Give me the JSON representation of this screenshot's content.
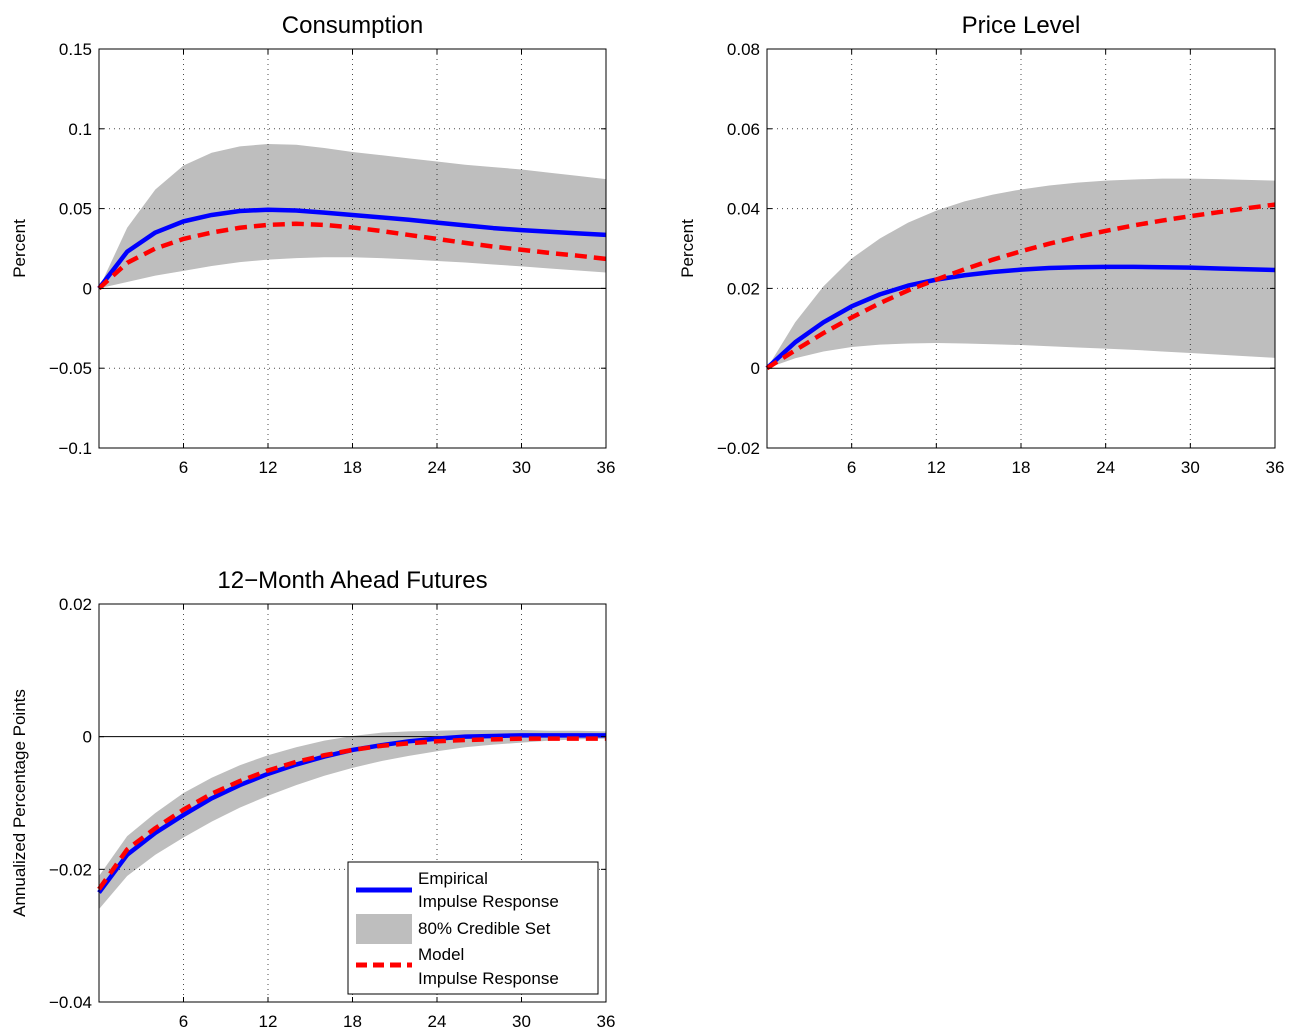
{
  "colors": {
    "empirical": "#0000ff",
    "band": "#bebebe",
    "model": "#ff0000",
    "axis": "#000000"
  },
  "legend": {
    "entries": [
      {
        "key": "empirical",
        "lines": [
          "Empirical",
          "Impulse Response"
        ]
      },
      {
        "key": "band",
        "lines": [
          "80% Credible Set"
        ]
      },
      {
        "key": "model",
        "lines": [
          "Model",
          "Impulse Response"
        ]
      }
    ],
    "placement": "lower-right of 12-Month Ahead Futures panel"
  },
  "chart_data": [
    {
      "type": "line",
      "title": "Consumption",
      "xlabel": "",
      "ylabel": "Percent",
      "xlim": [
        0,
        36
      ],
      "ylim": [
        -0.1,
        0.15
      ],
      "xticks": [
        6,
        12,
        18,
        24,
        30,
        36
      ],
      "xtick_labels": [
        "6",
        "12",
        "18",
        "24",
        "30",
        "36"
      ],
      "yticks": [
        -0.1,
        -0.05,
        0,
        0.05,
        0.1,
        0.15
      ],
      "ytick_labels": [
        "−0.1",
        "−0.05",
        "0",
        "0.05",
        "0.1",
        "0.15"
      ],
      "grid": true,
      "x": [
        0,
        2,
        4,
        6,
        8,
        10,
        12,
        14,
        16,
        18,
        20,
        22,
        24,
        26,
        28,
        30,
        32,
        34,
        36
      ],
      "series": [
        {
          "name": "Empirical Impulse Response",
          "key": "empirical",
          "values": [
            0,
            0.023,
            0.035,
            0.042,
            0.046,
            0.0485,
            0.0493,
            0.0488,
            0.0475,
            0.046,
            0.0445,
            0.043,
            0.0412,
            0.0395,
            0.0378,
            0.0365,
            0.0355,
            0.0345,
            0.0335
          ]
        },
        {
          "name": "Model Impulse Response",
          "key": "model",
          "values": [
            0,
            0.016,
            0.025,
            0.031,
            0.035,
            0.038,
            0.0398,
            0.0405,
            0.0398,
            0.0382,
            0.036,
            0.0335,
            0.031,
            0.0285,
            0.0262,
            0.0242,
            0.0222,
            0.0205,
            0.0185
          ]
        },
        {
          "name": "80% Credible Set",
          "key": "band",
          "lower": [
            0,
            0.004,
            0.008,
            0.011,
            0.014,
            0.0165,
            0.018,
            0.019,
            0.0195,
            0.0195,
            0.019,
            0.0182,
            0.0172,
            0.0162,
            0.015,
            0.0138,
            0.0125,
            0.0112,
            0.01
          ],
          "upper": [
            0,
            0.038,
            0.062,
            0.077,
            0.085,
            0.089,
            0.0905,
            0.09,
            0.088,
            0.0855,
            0.0835,
            0.0815,
            0.0795,
            0.0775,
            0.076,
            0.0745,
            0.0725,
            0.0705,
            0.0685
          ]
        }
      ]
    },
    {
      "type": "line",
      "title": "Price Level",
      "xlabel": "",
      "ylabel": "Percent",
      "xlim": [
        0,
        36
      ],
      "ylim": [
        -0.02,
        0.08
      ],
      "xticks": [
        6,
        12,
        18,
        24,
        30,
        36
      ],
      "xtick_labels": [
        "6",
        "12",
        "18",
        "24",
        "30",
        "36"
      ],
      "yticks": [
        -0.02,
        0,
        0.02,
        0.04,
        0.06,
        0.08
      ],
      "ytick_labels": [
        "−0.02",
        "0",
        "0.02",
        "0.04",
        "0.06",
        "0.08"
      ],
      "grid": true,
      "x": [
        0,
        2,
        4,
        6,
        8,
        10,
        12,
        14,
        16,
        18,
        20,
        22,
        24,
        26,
        28,
        30,
        32,
        34,
        36
      ],
      "series": [
        {
          "name": "Empirical Impulse Response",
          "key": "empirical",
          "values": [
            0,
            0.0065,
            0.0115,
            0.0155,
            0.0185,
            0.0207,
            0.0222,
            0.0233,
            0.0241,
            0.0247,
            0.0251,
            0.0253,
            0.0254,
            0.0254,
            0.0253,
            0.0252,
            0.025,
            0.0248,
            0.0246
          ]
        },
        {
          "name": "Model Impulse Response",
          "key": "model",
          "values": [
            0,
            0.0045,
            0.0088,
            0.0127,
            0.0163,
            0.0195,
            0.0222,
            0.0248,
            0.0272,
            0.0293,
            0.0312,
            0.0329,
            0.0344,
            0.0358,
            0.037,
            0.0381,
            0.0391,
            0.0401,
            0.041
          ]
        },
        {
          "name": "80% Credible Set",
          "key": "band",
          "lower": [
            0,
            0.0025,
            0.0042,
            0.0053,
            0.0059,
            0.0062,
            0.0063,
            0.0062,
            0.006,
            0.0058,
            0.0055,
            0.0052,
            0.0049,
            0.0046,
            0.0042,
            0.0038,
            0.0034,
            0.003,
            0.0026
          ],
          "upper": [
            0,
            0.0115,
            0.0205,
            0.0275,
            0.0325,
            0.0365,
            0.0395,
            0.0418,
            0.0435,
            0.0448,
            0.0458,
            0.0465,
            0.047,
            0.0473,
            0.0475,
            0.0475,
            0.0474,
            0.0472,
            0.047
          ]
        }
      ]
    },
    {
      "type": "line",
      "title": "12−Month Ahead Futures",
      "xlabel": "",
      "ylabel": "Annualized Percentage Points",
      "xlim": [
        0,
        36
      ],
      "ylim": [
        -0.04,
        0.02
      ],
      "xticks": [
        6,
        12,
        18,
        24,
        30,
        36
      ],
      "xtick_labels": [
        "6",
        "12",
        "18",
        "24",
        "30",
        "36"
      ],
      "yticks": [
        -0.04,
        -0.02,
        0,
        0.02
      ],
      "ytick_labels": [
        "−0.04",
        "−0.02",
        "0",
        "0.02"
      ],
      "grid": true,
      "x": [
        0,
        2,
        4,
        6,
        8,
        10,
        12,
        14,
        16,
        18,
        20,
        22,
        24,
        26,
        28,
        30,
        32,
        34,
        36
      ],
      "series": [
        {
          "name": "Empirical Impulse Response",
          "key": "empirical",
          "values": [
            -0.0235,
            -0.0178,
            -0.0145,
            -0.0118,
            -0.0093,
            -0.0073,
            -0.0056,
            -0.0042,
            -0.003,
            -0.002,
            -0.0013,
            -0.0007,
            -0.0003,
            0,
            0.0001,
            0.0002,
            0.0002,
            0.0002,
            0.0002
          ]
        },
        {
          "name": "Model Impulse Response",
          "key": "model",
          "values": [
            -0.023,
            -0.017,
            -0.0138,
            -0.011,
            -0.0086,
            -0.0067,
            -0.0051,
            -0.0038,
            -0.0028,
            -0.002,
            -0.0014,
            -0.001,
            -0.0007,
            -0.0005,
            -0.0004,
            -0.0003,
            -0.0003,
            -0.0003,
            -0.0003
          ]
        },
        {
          "name": "80% Credible Set",
          "key": "band",
          "lower": [
            -0.026,
            -0.021,
            -0.0178,
            -0.0152,
            -0.0128,
            -0.0107,
            -0.0089,
            -0.0073,
            -0.0059,
            -0.0047,
            -0.0037,
            -0.0029,
            -0.0022,
            -0.0016,
            -0.0012,
            -0.0009,
            -0.0006,
            -0.0004,
            -0.0003
          ],
          "upper": [
            -0.021,
            -0.015,
            -0.0115,
            -0.0085,
            -0.0062,
            -0.0043,
            -0.0028,
            -0.0016,
            -0.0006,
            0.0001,
            0.0006,
            0.0008,
            0.0009,
            0.001,
            0.001,
            0.001,
            0.0009,
            0.0009,
            0.0008
          ]
        }
      ]
    }
  ]
}
